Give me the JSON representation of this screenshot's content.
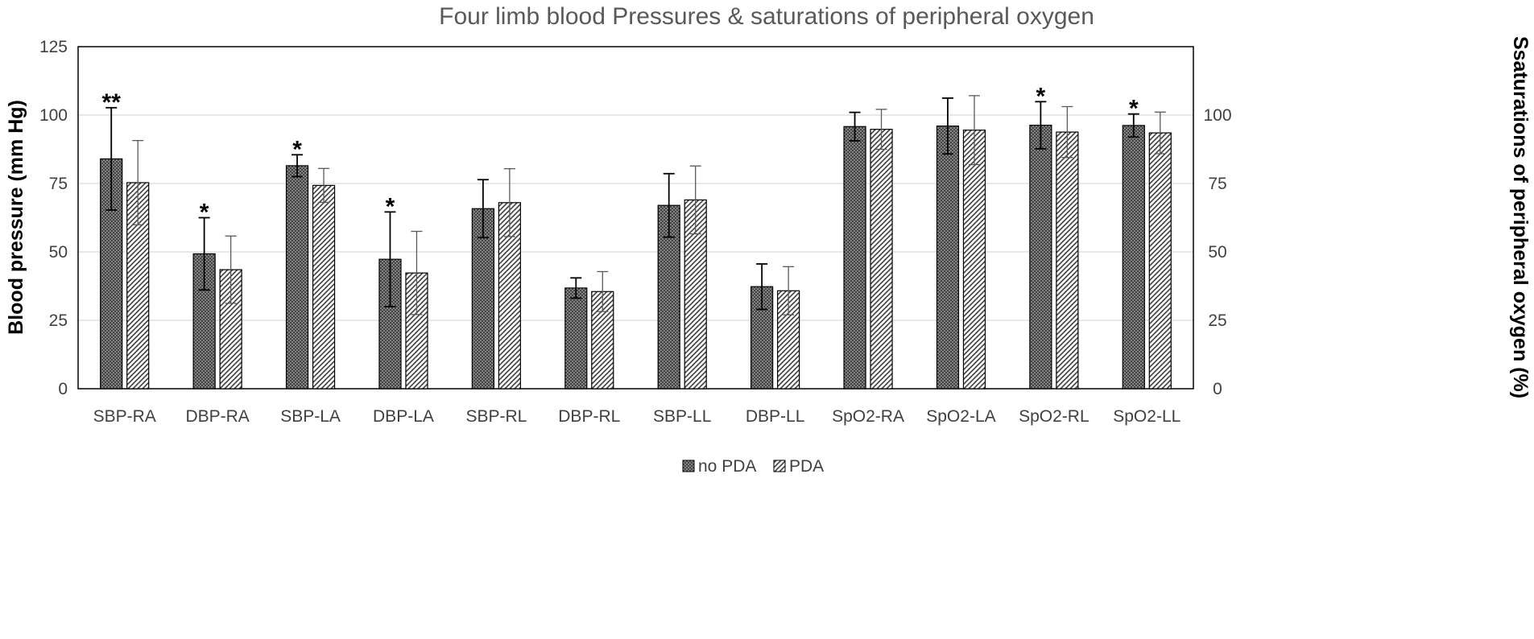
{
  "chart_data": {
    "type": "bar",
    "title": "Four limb blood Pressures & saturations of peripheral oxygen",
    "ylabel": "Blood pressure (mm Hg)",
    "y2label": "Ssaturations of peripheral oxygen (%)",
    "ylim": [
      0,
      125
    ],
    "y_ticks": [
      "0",
      "25",
      "50",
      "75",
      "100",
      "125"
    ],
    "y2_ticks": [
      "0",
      "25",
      "50",
      "75",
      "100"
    ],
    "grid": true,
    "legend_position": "bottom",
    "categories": [
      "SBP-RA",
      "DBP-RA",
      "SBP-LA",
      "DBP-LA",
      "SBP-RL",
      "DBP-RL",
      "SBP-LL",
      "DBP-LL",
      "SpO2-RA",
      "SpO2-LA",
      "SpO2-RL",
      "SpO2-LL"
    ],
    "series": [
      {
        "name": "no PDA",
        "values": [
          84,
          49.3,
          81.5,
          47.3,
          65.8,
          36.8,
          67,
          37.3,
          95.8,
          96,
          96.3,
          96.2
        ],
        "errors": [
          18.7,
          13.2,
          4,
          17.3,
          10.6,
          3.7,
          11.6,
          8.3,
          5.2,
          10.2,
          8.6,
          4.2
        ],
        "pattern": "dark-hatch"
      },
      {
        "name": "PDA",
        "values": [
          75.3,
          43.5,
          74.3,
          42.3,
          68,
          35.5,
          69,
          35.8,
          94.8,
          94.5,
          93.8,
          93.5
        ],
        "errors": [
          15.4,
          12.3,
          6.2,
          15.2,
          12.4,
          7.3,
          12.4,
          8.8,
          7.3,
          12.6,
          9.3,
          7.6
        ],
        "pattern": "diagonal-stripe"
      }
    ],
    "annotations": [
      {
        "category": "SBP-RA",
        "series": "no PDA",
        "text": "**"
      },
      {
        "category": "DBP-RA",
        "series": "no PDA",
        "text": "*"
      },
      {
        "category": "SBP-LA",
        "series": "no PDA",
        "text": "*"
      },
      {
        "category": "DBP-LA",
        "series": "no PDA",
        "text": "*"
      },
      {
        "category": "SpO2-RL",
        "series": "no PDA",
        "text": "*"
      },
      {
        "category": "SpO2-LL",
        "series": "no PDA",
        "text": "*"
      }
    ]
  }
}
